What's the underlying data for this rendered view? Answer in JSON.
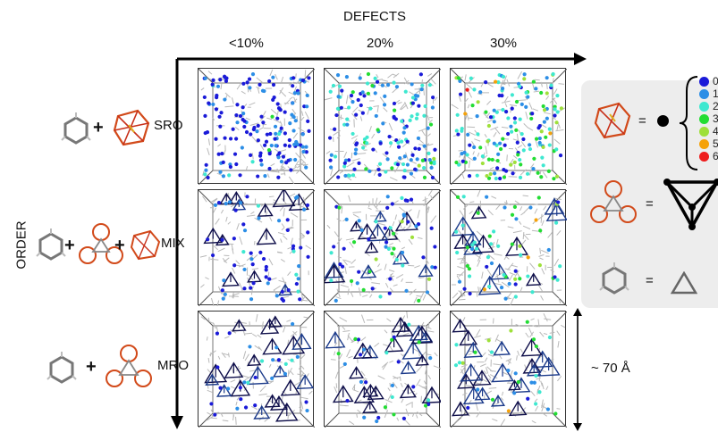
{
  "header": {
    "defects_title": "DEFECTS",
    "order_title": "ORDER"
  },
  "columns": [
    {
      "label": "<10%"
    },
    {
      "label": "20%"
    },
    {
      "label": "30%"
    }
  ],
  "rows": [
    {
      "label": "SRO"
    },
    {
      "label": "MIX"
    },
    {
      "label": "MRO"
    }
  ],
  "operators": {
    "plus": "+",
    "equals": "="
  },
  "legend": {
    "coordination_numbers": [
      "0",
      "1",
      "2",
      "3",
      "4",
      "5",
      "6"
    ],
    "colors": [
      "#1a1ad8",
      "#2c8ee6",
      "#3ee8d0",
      "#22dd33",
      "#9ee03a",
      "#f5a20a",
      "#ee1c1c"
    ]
  },
  "scale_bar": {
    "label": "~ 70 Å"
  }
}
